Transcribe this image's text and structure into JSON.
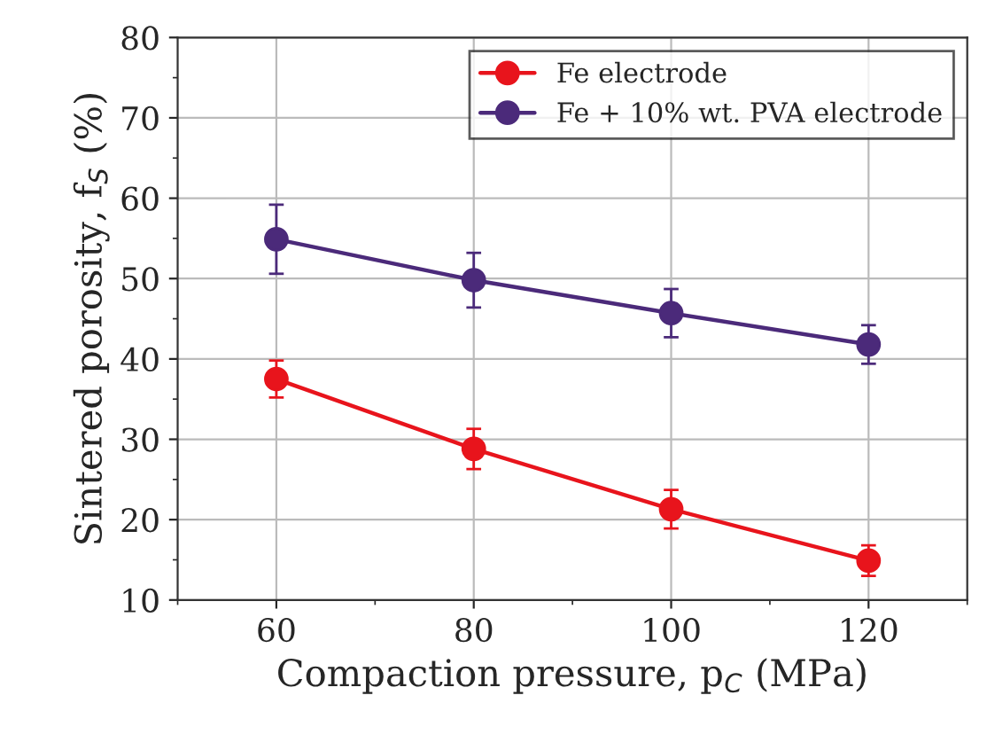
{
  "chart_data": {
    "type": "line",
    "xlabel": "Compaction pressure, p$_{C}$ (MPa)",
    "ylabel": "Sintered porosity, f$_{S}$ (%)",
    "x": [
      60,
      80,
      100,
      120
    ],
    "series": [
      {
        "name": "Fe electrode",
        "color": "#e8141c",
        "values": [
          37.5,
          28.8,
          21.3,
          14.9
        ],
        "errors": [
          2.3,
          2.5,
          2.4,
          1.9
        ]
      },
      {
        "name": "Fe + 10% wt. PVA electrode",
        "color": "#4b2a7a",
        "values": [
          54.9,
          49.8,
          45.7,
          41.8
        ],
        "errors": [
          4.3,
          3.4,
          3.0,
          2.4
        ]
      }
    ],
    "xlim": [
      50,
      130
    ],
    "xticks": [
      60,
      80,
      100,
      120
    ],
    "ylim": [
      10,
      80
    ],
    "yticks": [
      10,
      20,
      30,
      40,
      50,
      60,
      70,
      80
    ],
    "grid": true,
    "legend": "top right",
    "marker": "circle",
    "line_style": "solid"
  }
}
